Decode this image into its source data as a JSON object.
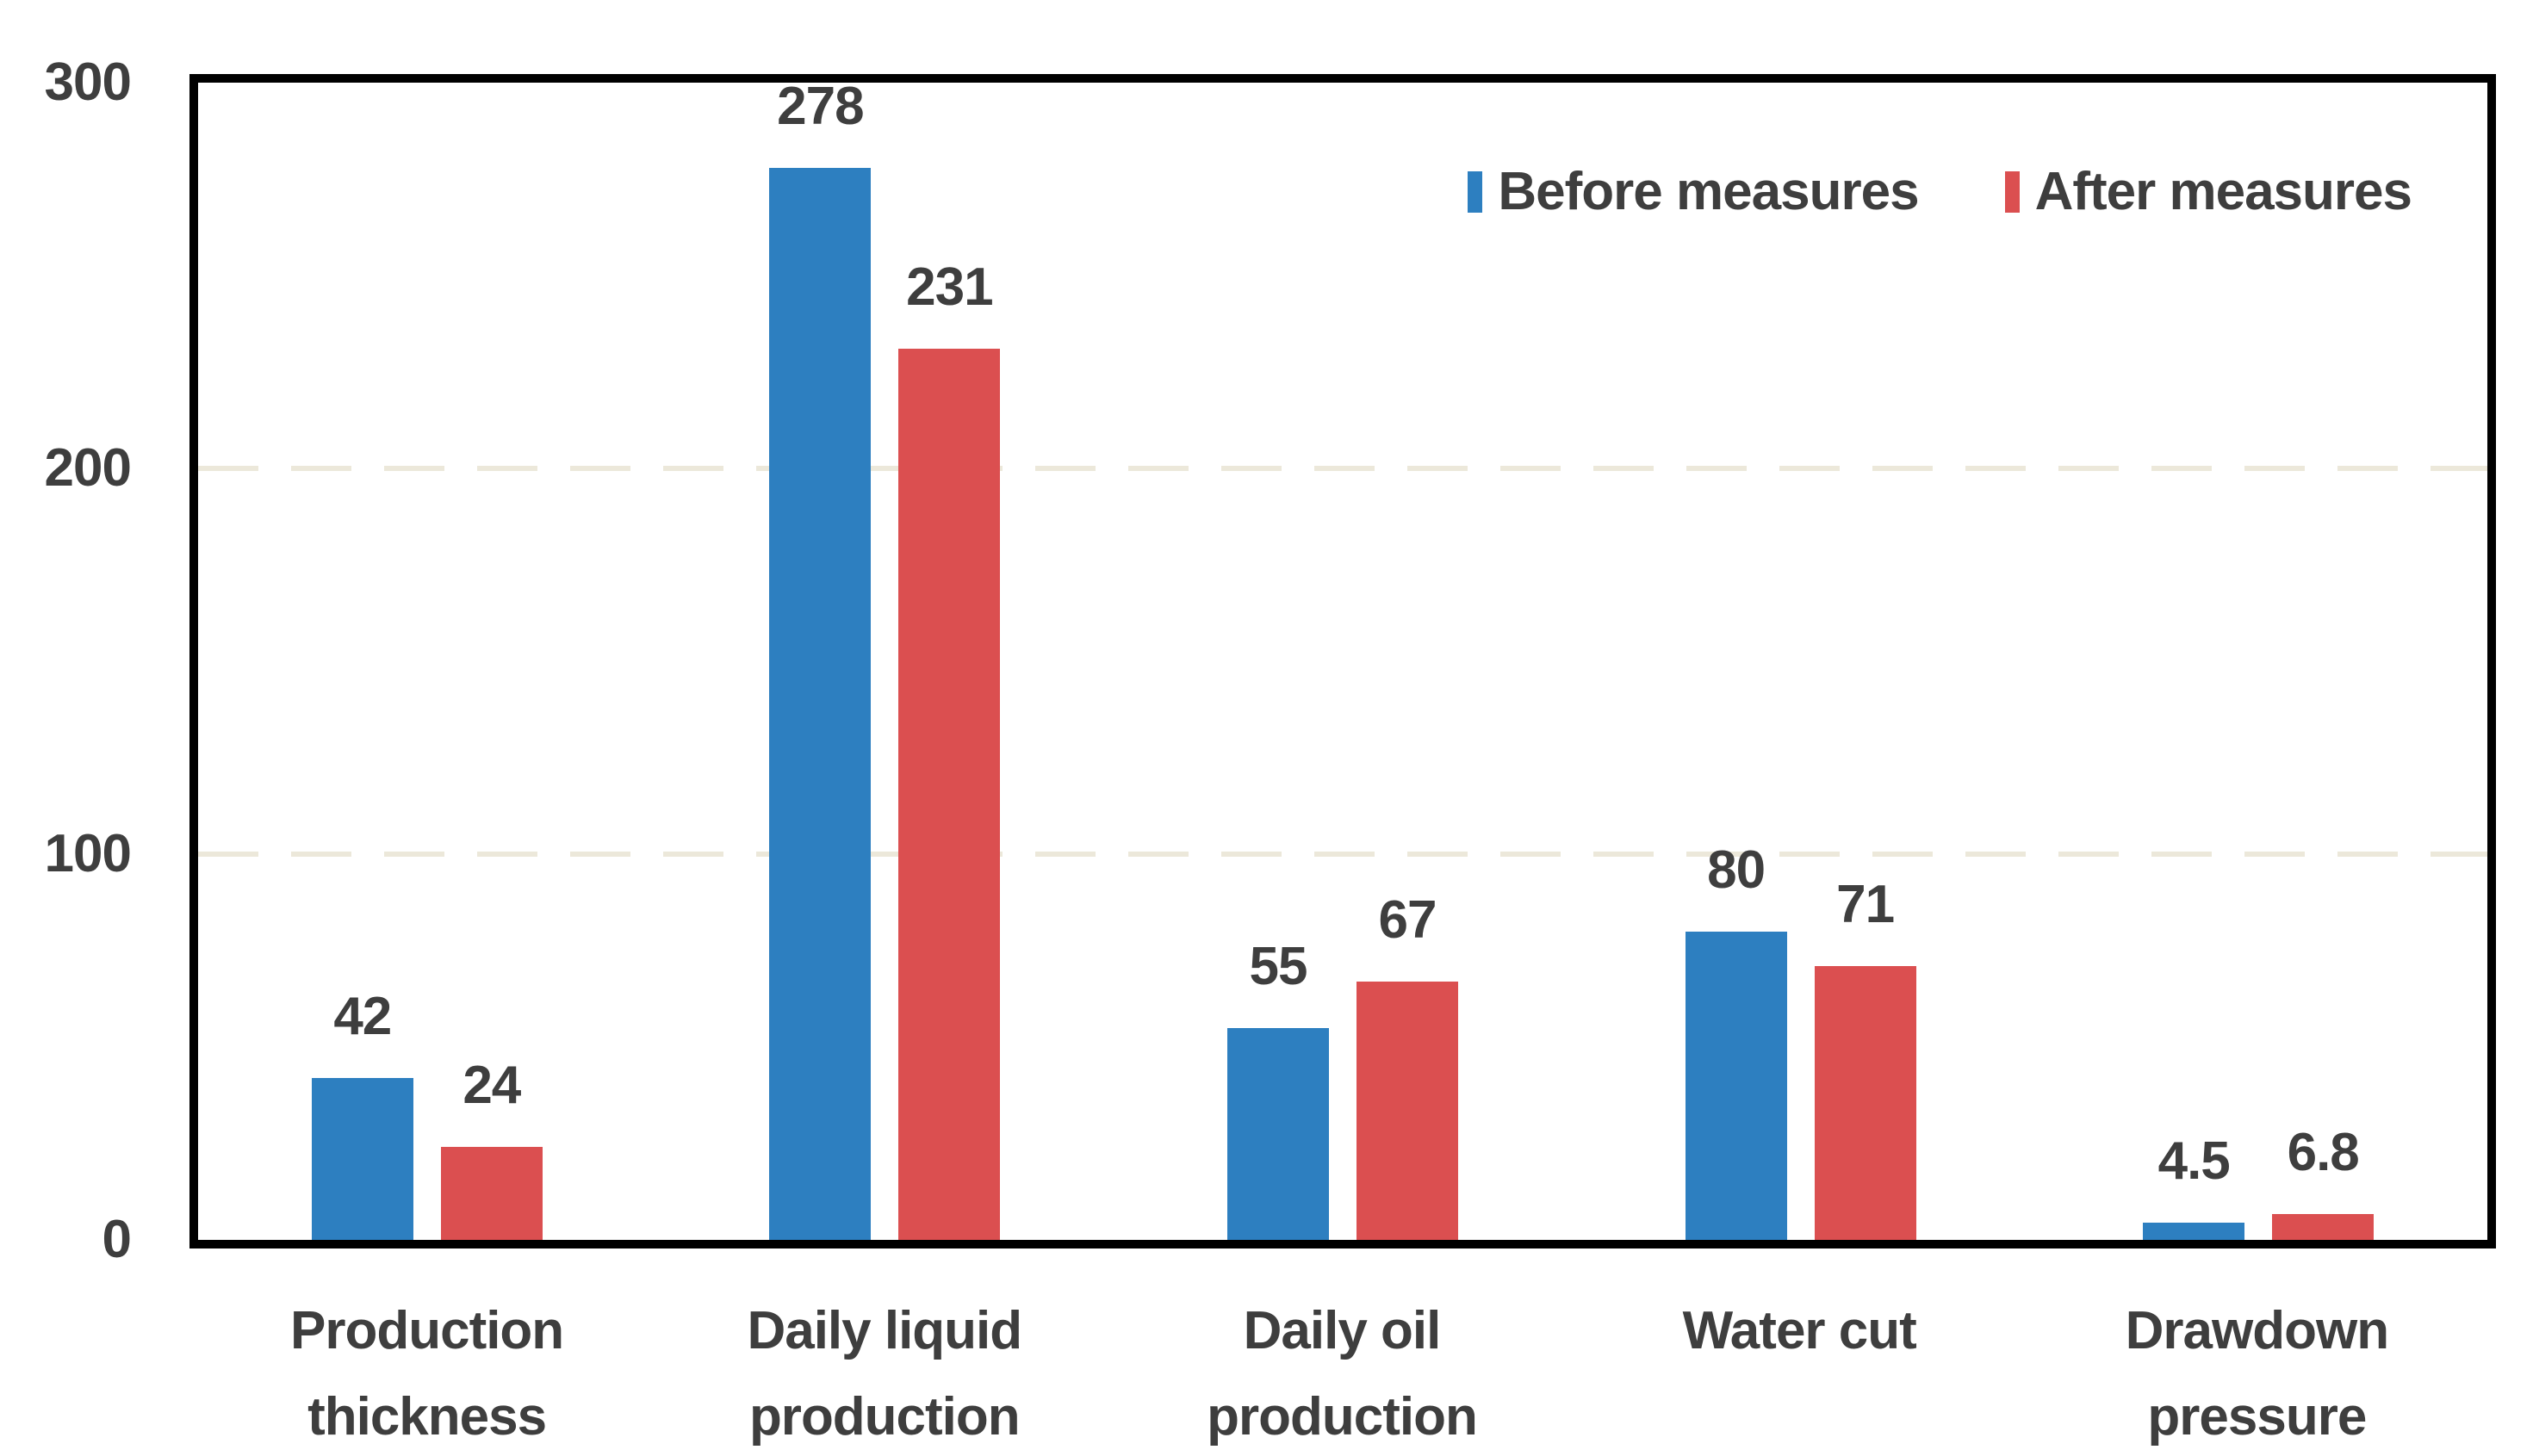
{
  "chart_data": {
    "type": "bar",
    "title": "",
    "xlabel": "",
    "ylabel": "",
    "categories": [
      "Production\nthickness",
      "Daily liquid\nproduction",
      "Daily oil\nproduction",
      "Water cut",
      "Drawdown\npressure"
    ],
    "series": [
      {
        "name": "Before measures",
        "color": "#2d7fc0",
        "values": [
          42,
          278,
          55,
          80,
          4.5
        ]
      },
      {
        "name": "After measures",
        "color": "#db4f50",
        "values": [
          24,
          231,
          67,
          71,
          6.8
        ]
      }
    ],
    "data_labels_shown": true,
    "ylim": [
      0,
      300
    ],
    "yticks": [
      "0",
      "100",
      "200",
      "300"
    ],
    "grid": {
      "horizontal_at": [
        100,
        200
      ],
      "style": "dashed",
      "color": "#ece8da"
    },
    "legend": {
      "position": "top-right-inside"
    },
    "colors": {
      "axis_frame": "#000000",
      "text": "#3e3e3e",
      "background": "#ffffff"
    }
  }
}
